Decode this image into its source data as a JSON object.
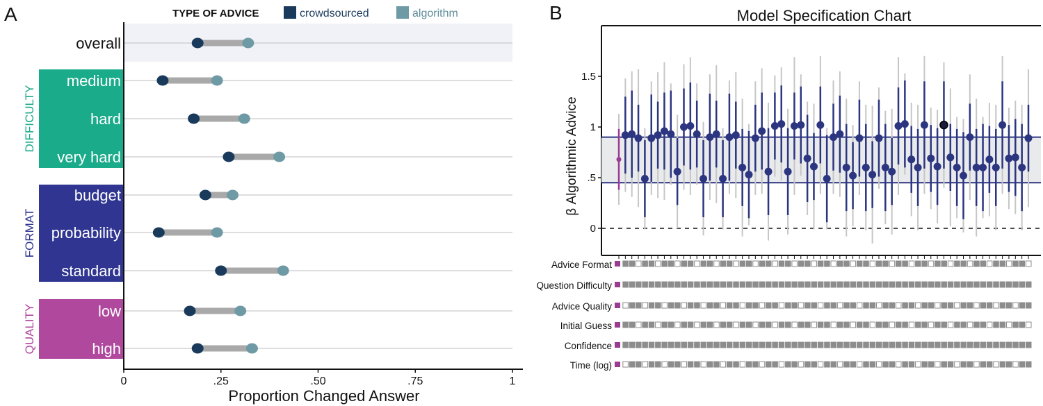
{
  "panel_a": {
    "letter": "A",
    "legend_title": "TYPE OF ADVICE",
    "legend_items": [
      {
        "label": "crowdsourced",
        "color": "#1a3a5c"
      },
      {
        "label": "algorithm",
        "color": "#6e9aa6"
      }
    ],
    "xlabel": "Proportion Changed Answer",
    "groups": [
      {
        "label": "DIFFICULTY",
        "color": "#1aab8a"
      },
      {
        "label": "FORMAT",
        "color": "#2f3590"
      },
      {
        "label": "QUALITY",
        "color": "#b0489e"
      }
    ]
  },
  "panel_b": {
    "letter": "B",
    "title": "Model Specification Chart",
    "ylabel": "β Algorithmic Advice",
    "row_labels": [
      "Advice Format",
      "Question Difficulty",
      "Advice Quality",
      "Initial Guess",
      "Confidence",
      "Time (log)"
    ]
  },
  "chart_data": [
    {
      "type": "dumbbell",
      "x_ticks": [
        "0",
        ".25",
        ".50",
        ".75",
        "1"
      ],
      "xlim": [
        0,
        1
      ],
      "categories": [
        "overall",
        "medium",
        "hard",
        "very hard",
        "budget",
        "probability",
        "standard",
        "low",
        "high"
      ],
      "series": [
        {
          "name": "crowdsourced",
          "values": [
            0.19,
            0.1,
            0.18,
            0.27,
            0.21,
            0.09,
            0.25,
            0.17,
            0.19
          ]
        },
        {
          "name": "algorithm",
          "values": [
            0.32,
            0.24,
            0.31,
            0.4,
            0.28,
            0.24,
            0.41,
            0.3,
            0.33
          ]
        }
      ]
    },
    {
      "type": "scatter",
      "y_ticks": [
        "0",
        ".5",
        "1",
        "1.5"
      ],
      "ylim": [
        -0.25,
        2.0
      ],
      "band": [
        0.45,
        0.9
      ],
      "values": [
        0.68,
        0.92,
        0.93,
        0.89,
        0.49,
        0.89,
        0.92,
        0.96,
        0.93,
        0.56,
        1.0,
        1.01,
        0.93,
        0.49,
        0.9,
        0.93,
        0.49,
        0.9,
        0.92,
        0.6,
        0.53,
        0.89,
        0.96,
        0.56,
        1.01,
        1.03,
        0.56,
        1.01,
        1.02,
        0.69,
        0.61,
        1.02,
        0.49,
        0.9,
        0.93,
        0.6,
        0.52,
        0.89,
        0.6,
        0.53,
        0.89,
        0.6,
        0.56,
        1.01,
        1.03,
        0.68,
        0.6,
        1.02,
        0.69,
        0.61,
        1.02,
        0.7,
        0.6,
        0.52,
        0.9,
        0.6,
        0.6,
        0.68,
        0.6,
        1.02,
        0.69,
        0.7,
        0.6,
        0.89
      ]
    }
  ]
}
